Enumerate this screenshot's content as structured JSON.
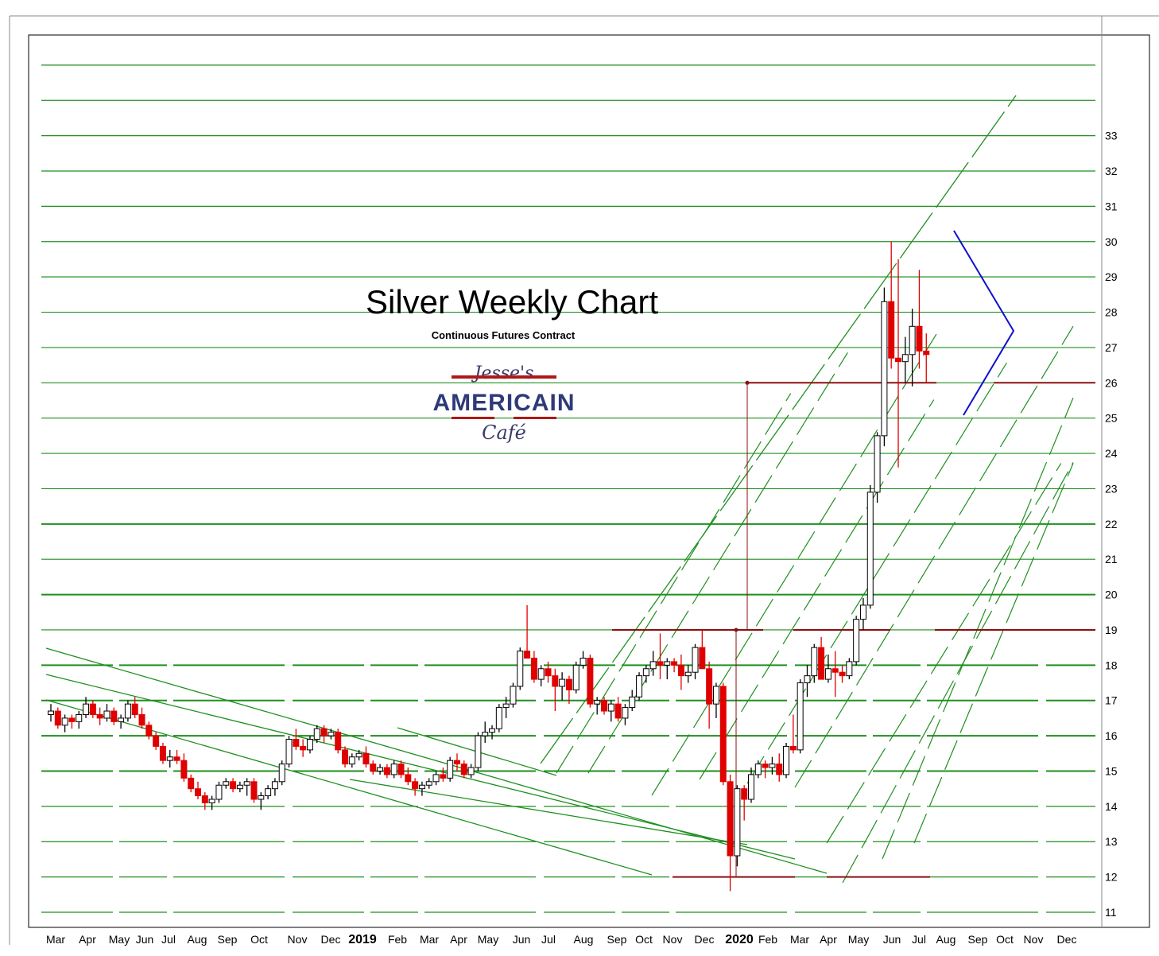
{
  "chart_data": {
    "type": "candlestick",
    "title": "Silver Weekly Chart",
    "subtitle": "Continuous Futures Contract",
    "logo": {
      "top": "Jesse's",
      "middle": "AMERICAIN",
      "bottom": "Café"
    },
    "y_ticks": [
      11,
      12,
      13,
      14,
      15,
      16,
      17,
      18,
      19,
      20,
      21,
      22,
      23,
      24,
      25,
      26,
      27,
      28,
      29,
      30,
      31,
      32,
      33
    ],
    "ylim": [
      10.1,
      35.5
    ],
    "x_labels": [
      "Mar",
      "Apr",
      "May",
      "Jun",
      "Jul",
      "Aug",
      "Sep",
      "Oct",
      "Nov",
      "Dec",
      "2019",
      "Feb",
      "Mar",
      "Apr",
      "May",
      "Jun",
      "Jul",
      "Aug",
      "Sep",
      "Oct",
      "Nov",
      "Dec",
      "2020",
      "Feb",
      "Mar",
      "Apr",
      "May",
      "Jun",
      "Jul",
      "Aug",
      "Sep",
      "Oct",
      "Nov",
      "Dec"
    ],
    "x_major_labels": [
      "2019",
      "2020"
    ],
    "colors": {
      "up": "#ffffff",
      "down": "#e00000",
      "gridline": "#1f8f1f",
      "trendline": "#1f8f1f",
      "level_line": "#8b1010",
      "pennant": "#1010cc"
    },
    "series": [
      {
        "name": "",
        "candles": [
          [
            16.6,
            16.9,
            16.4,
            16.7
          ],
          [
            16.7,
            16.8,
            16.2,
            16.3
          ],
          [
            16.3,
            16.6,
            16.1,
            16.5
          ],
          [
            16.5,
            16.6,
            16.2,
            16.4
          ],
          [
            16.4,
            16.7,
            16.2,
            16.6
          ],
          [
            16.6,
            17.1,
            16.5,
            16.9
          ],
          [
            16.9,
            17.0,
            16.5,
            16.6
          ],
          [
            16.6,
            16.8,
            16.3,
            16.5
          ],
          [
            16.5,
            16.9,
            16.4,
            16.7
          ],
          [
            16.7,
            16.8,
            16.3,
            16.4
          ],
          [
            16.4,
            16.6,
            16.2,
            16.5
          ],
          [
            16.5,
            17.0,
            16.4,
            16.9
          ],
          [
            16.9,
            17.1,
            16.5,
            16.6
          ],
          [
            16.6,
            16.8,
            16.2,
            16.3
          ],
          [
            16.3,
            16.4,
            15.9,
            16.0
          ],
          [
            16.0,
            16.1,
            15.6,
            15.7
          ],
          [
            15.7,
            15.8,
            15.2,
            15.3
          ],
          [
            15.3,
            15.6,
            15.1,
            15.4
          ],
          [
            15.4,
            15.6,
            15.2,
            15.3
          ],
          [
            15.3,
            15.5,
            14.7,
            14.8
          ],
          [
            14.8,
            14.9,
            14.4,
            14.5
          ],
          [
            14.5,
            14.7,
            14.2,
            14.3
          ],
          [
            14.3,
            14.4,
            13.9,
            14.1
          ],
          [
            14.1,
            14.3,
            13.9,
            14.2
          ],
          [
            14.2,
            14.7,
            14.1,
            14.6
          ],
          [
            14.6,
            14.8,
            14.5,
            14.7
          ],
          [
            14.7,
            14.8,
            14.4,
            14.5
          ],
          [
            14.5,
            14.7,
            14.4,
            14.6
          ],
          [
            14.6,
            14.8,
            14.3,
            14.7
          ],
          [
            14.7,
            14.8,
            14.1,
            14.2
          ],
          [
            14.2,
            14.4,
            13.9,
            14.3
          ],
          [
            14.3,
            14.6,
            14.2,
            14.5
          ],
          [
            14.5,
            14.8,
            14.3,
            14.7
          ],
          [
            14.7,
            15.3,
            14.6,
            15.2
          ],
          [
            15.2,
            16.0,
            15.1,
            15.9
          ],
          [
            15.9,
            16.2,
            15.6,
            15.7
          ],
          [
            15.7,
            15.9,
            15.4,
            15.6
          ],
          [
            15.6,
            16.0,
            15.5,
            15.9
          ],
          [
            15.9,
            16.3,
            15.8,
            16.2
          ],
          [
            16.2,
            16.3,
            15.8,
            16.0
          ],
          [
            16.0,
            16.2,
            15.9,
            16.1
          ],
          [
            16.1,
            16.2,
            15.5,
            15.6
          ],
          [
            15.6,
            15.7,
            15.1,
            15.2
          ],
          [
            15.2,
            15.5,
            15.1,
            15.4
          ],
          [
            15.4,
            15.6,
            15.3,
            15.5
          ],
          [
            15.5,
            15.7,
            15.1,
            15.2
          ],
          [
            15.2,
            15.3,
            14.9,
            15.0
          ],
          [
            15.0,
            15.2,
            14.9,
            15.1
          ],
          [
            15.1,
            15.2,
            14.8,
            14.9
          ],
          [
            14.9,
            15.3,
            14.8,
            15.2
          ],
          [
            15.2,
            15.3,
            14.8,
            14.9
          ],
          [
            14.9,
            15.1,
            14.6,
            14.7
          ],
          [
            14.7,
            14.8,
            14.3,
            14.5
          ],
          [
            14.5,
            14.7,
            14.3,
            14.6
          ],
          [
            14.6,
            14.8,
            14.5,
            14.7
          ],
          [
            14.7,
            15.0,
            14.6,
            14.9
          ],
          [
            14.9,
            15.1,
            14.7,
            14.8
          ],
          [
            14.8,
            15.4,
            14.7,
            15.3
          ],
          [
            15.3,
            15.5,
            15.0,
            15.2
          ],
          [
            15.2,
            15.3,
            14.8,
            14.9
          ],
          [
            14.9,
            15.2,
            14.8,
            15.1
          ],
          [
            15.1,
            16.1,
            15.0,
            16.0
          ],
          [
            16.0,
            16.4,
            15.8,
            16.1
          ],
          [
            16.1,
            16.3,
            15.9,
            16.2
          ],
          [
            16.2,
            16.9,
            16.1,
            16.8
          ],
          [
            16.8,
            17.1,
            16.5,
            16.9
          ],
          [
            16.9,
            17.5,
            16.8,
            17.4
          ],
          [
            17.4,
            18.5,
            17.3,
            18.4
          ],
          [
            18.4,
            19.7,
            18.2,
            18.2
          ],
          [
            18.2,
            18.4,
            17.5,
            17.6
          ],
          [
            17.6,
            18.0,
            17.4,
            17.9
          ],
          [
            17.9,
            18.1,
            17.5,
            17.7
          ],
          [
            17.7,
            17.9,
            16.7,
            17.4
          ],
          [
            17.4,
            17.8,
            17.0,
            17.6
          ],
          [
            17.6,
            17.7,
            16.9,
            17.3
          ],
          [
            17.3,
            18.1,
            17.2,
            18.0
          ],
          [
            18.0,
            18.4,
            17.9,
            18.2
          ],
          [
            18.2,
            18.3,
            16.8,
            16.9
          ],
          [
            16.9,
            17.1,
            16.6,
            17.0
          ],
          [
            17.0,
            17.1,
            16.6,
            16.7
          ],
          [
            16.7,
            17.0,
            16.4,
            16.9
          ],
          [
            16.9,
            17.1,
            16.4,
            16.5
          ],
          [
            16.5,
            16.9,
            16.3,
            16.8
          ],
          [
            16.8,
            17.3,
            16.7,
            17.1
          ],
          [
            17.1,
            17.8,
            17.0,
            17.7
          ],
          [
            17.7,
            18.0,
            17.5,
            17.9
          ],
          [
            17.9,
            18.4,
            17.7,
            18.1
          ],
          [
            18.1,
            18.9,
            17.6,
            18.0
          ],
          [
            18.0,
            18.2,
            17.6,
            18.1
          ],
          [
            18.1,
            18.2,
            17.8,
            18.0
          ],
          [
            18.0,
            18.3,
            17.3,
            17.7
          ],
          [
            17.7,
            18.0,
            17.5,
            17.8
          ],
          [
            17.8,
            18.6,
            17.6,
            18.5
          ],
          [
            18.5,
            19.0,
            17.9,
            17.9
          ],
          [
            17.9,
            18.1,
            16.2,
            16.9
          ],
          [
            16.9,
            17.5,
            16.5,
            17.4
          ],
          [
            17.4,
            17.5,
            14.6,
            14.7
          ],
          [
            14.7,
            14.9,
            11.6,
            12.6
          ],
          [
            12.6,
            14.6,
            12.3,
            14.5
          ],
          [
            14.5,
            14.6,
            13.6,
            14.2
          ],
          [
            14.2,
            15.1,
            14.1,
            14.9
          ],
          [
            14.9,
            15.3,
            14.8,
            15.2
          ],
          [
            15.2,
            15.3,
            14.8,
            15.1
          ],
          [
            15.1,
            15.4,
            14.9,
            15.2
          ],
          [
            15.2,
            15.5,
            14.7,
            14.9
          ],
          [
            14.9,
            15.8,
            14.8,
            15.7
          ],
          [
            15.7,
            16.6,
            15.5,
            15.6
          ],
          [
            15.6,
            17.6,
            15.5,
            17.5
          ],
          [
            17.5,
            18.0,
            17.1,
            17.7
          ],
          [
            17.7,
            18.6,
            17.5,
            18.5
          ],
          [
            18.5,
            18.8,
            17.6,
            17.6
          ],
          [
            17.6,
            18.3,
            17.5,
            17.9
          ],
          [
            17.9,
            18.4,
            17.1,
            17.8
          ],
          [
            17.8,
            18.0,
            17.5,
            17.7
          ],
          [
            17.7,
            18.2,
            17.6,
            18.1
          ],
          [
            18.1,
            19.4,
            18.0,
            19.3
          ],
          [
            19.3,
            19.9,
            19.0,
            19.7
          ],
          [
            19.7,
            23.1,
            19.6,
            22.9
          ],
          [
            22.9,
            24.6,
            22.6,
            24.5
          ],
          [
            24.5,
            28.7,
            24.2,
            28.3
          ],
          [
            28.3,
            30.0,
            26.4,
            26.7
          ],
          [
            26.7,
            29.5,
            23.6,
            26.6
          ],
          [
            26.6,
            27.3,
            26.0,
            26.8
          ],
          [
            26.8,
            28.1,
            25.9,
            27.6
          ],
          [
            27.6,
            29.2,
            26.4,
            26.9
          ],
          [
            26.9,
            27.4,
            26.0,
            26.8
          ]
        ]
      }
    ],
    "annotations": {
      "horizontal_levels": [
        12,
        19,
        26
      ],
      "price_target_arrow": {
        "from": 19,
        "to": 26
      }
    }
  }
}
